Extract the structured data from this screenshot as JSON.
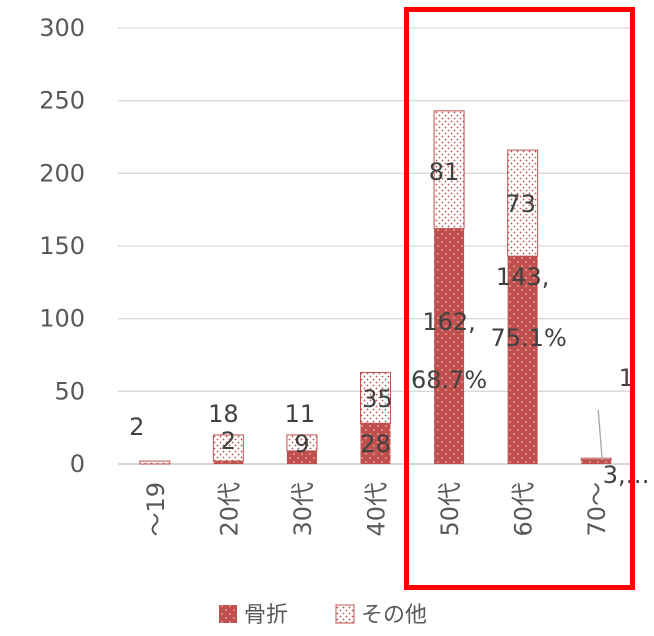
{
  "chart_data": {
    "type": "bar",
    "stacked": true,
    "categories": [
      "～19",
      "20代",
      "30代",
      "40代",
      "50代",
      "60代",
      "70～"
    ],
    "series": [
      {
        "name": "骨折",
        "values": [
          0,
          2,
          9,
          28,
          162,
          143,
          3
        ],
        "data_labels": [
          "",
          "2",
          "9",
          "28",
          "162,\n68.7%",
          "143,\n75.1%",
          "3,…"
        ]
      },
      {
        "name": "その他",
        "values": [
          2,
          18,
          11,
          35,
          81,
          73,
          1
        ],
        "data_labels": [
          "2",
          "18",
          "11",
          "35",
          "81",
          "73",
          "1"
        ]
      }
    ],
    "ylim": [
      0,
      300
    ],
    "yticks": [
      0,
      50,
      100,
      150,
      200,
      250,
      300
    ],
    "grid": true,
    "legend": "bottom",
    "highlight_categories": [
      "50代",
      "60代",
      "70～"
    ],
    "colors": {
      "fracture": "#c0504d",
      "other_dots": "#c0504d",
      "grid": "#d9d9d9",
      "highlight": "#ff0000"
    }
  }
}
